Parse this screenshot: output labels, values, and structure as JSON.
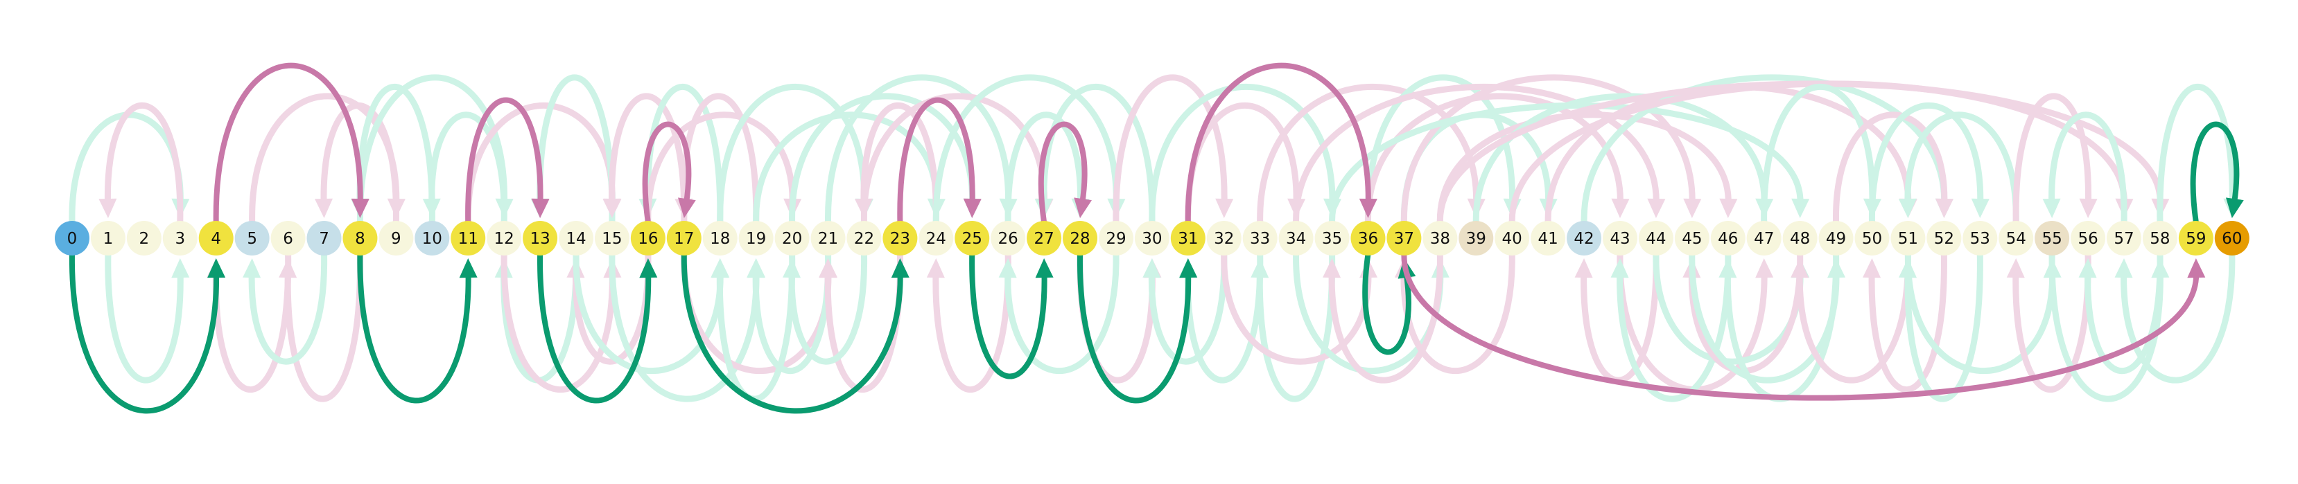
{
  "diagram": {
    "nodes": [
      {
        "label": "0",
        "kind": "start"
      },
      {
        "label": "1",
        "kind": "plain"
      },
      {
        "label": "2",
        "kind": "plain"
      },
      {
        "label": "3",
        "kind": "plain"
      },
      {
        "label": "4",
        "kind": "path"
      },
      {
        "label": "5",
        "kind": "faded-blue"
      },
      {
        "label": "6",
        "kind": "plain"
      },
      {
        "label": "7",
        "kind": "faded-blue"
      },
      {
        "label": "8",
        "kind": "path"
      },
      {
        "label": "9",
        "kind": "plain"
      },
      {
        "label": "10",
        "kind": "faded-blue"
      },
      {
        "label": "11",
        "kind": "path"
      },
      {
        "label": "12",
        "kind": "plain"
      },
      {
        "label": "13",
        "kind": "path"
      },
      {
        "label": "14",
        "kind": "plain"
      },
      {
        "label": "15",
        "kind": "plain"
      },
      {
        "label": "16",
        "kind": "path"
      },
      {
        "label": "17",
        "kind": "path"
      },
      {
        "label": "18",
        "kind": "plain"
      },
      {
        "label": "19",
        "kind": "plain"
      },
      {
        "label": "20",
        "kind": "plain"
      },
      {
        "label": "21",
        "kind": "plain"
      },
      {
        "label": "22",
        "kind": "plain"
      },
      {
        "label": "23",
        "kind": "path"
      },
      {
        "label": "24",
        "kind": "plain"
      },
      {
        "label": "25",
        "kind": "path"
      },
      {
        "label": "26",
        "kind": "plain"
      },
      {
        "label": "27",
        "kind": "path"
      },
      {
        "label": "28",
        "kind": "path"
      },
      {
        "label": "29",
        "kind": "plain"
      },
      {
        "label": "30",
        "kind": "plain"
      },
      {
        "label": "31",
        "kind": "path"
      },
      {
        "label": "32",
        "kind": "plain"
      },
      {
        "label": "33",
        "kind": "plain"
      },
      {
        "label": "34",
        "kind": "plain"
      },
      {
        "label": "35",
        "kind": "plain"
      },
      {
        "label": "36",
        "kind": "path"
      },
      {
        "label": "37",
        "kind": "path"
      },
      {
        "label": "38",
        "kind": "plain"
      },
      {
        "label": "39",
        "kind": "faded-tan"
      },
      {
        "label": "40",
        "kind": "plain"
      },
      {
        "label": "41",
        "kind": "plain"
      },
      {
        "label": "42",
        "kind": "faded-blue"
      },
      {
        "label": "43",
        "kind": "plain"
      },
      {
        "label": "44",
        "kind": "plain"
      },
      {
        "label": "45",
        "kind": "plain"
      },
      {
        "label": "46",
        "kind": "plain"
      },
      {
        "label": "47",
        "kind": "plain"
      },
      {
        "label": "48",
        "kind": "plain"
      },
      {
        "label": "49",
        "kind": "plain"
      },
      {
        "label": "50",
        "kind": "plain"
      },
      {
        "label": "51",
        "kind": "plain"
      },
      {
        "label": "52",
        "kind": "plain"
      },
      {
        "label": "53",
        "kind": "plain"
      },
      {
        "label": "54",
        "kind": "plain"
      },
      {
        "label": "55",
        "kind": "faded-tan"
      },
      {
        "label": "56",
        "kind": "plain"
      },
      {
        "label": "57",
        "kind": "plain"
      },
      {
        "label": "58",
        "kind": "plain"
      },
      {
        "label": "59",
        "kind": "path"
      },
      {
        "label": "60",
        "kind": "goal"
      }
    ],
    "path_edges": [
      {
        "from": 0,
        "to": 4,
        "kind": "green",
        "side": "below"
      },
      {
        "from": 4,
        "to": 8,
        "kind": "pink",
        "side": "above"
      },
      {
        "from": 8,
        "to": 11,
        "kind": "green",
        "side": "below"
      },
      {
        "from": 11,
        "to": 13,
        "kind": "pink",
        "side": "above"
      },
      {
        "from": 13,
        "to": 16,
        "kind": "green",
        "side": "below"
      },
      {
        "from": 16,
        "to": 17,
        "kind": "pink",
        "side": "above"
      },
      {
        "from": 17,
        "to": 23,
        "kind": "green",
        "side": "below"
      },
      {
        "from": 23,
        "to": 25,
        "kind": "pink",
        "side": "above"
      },
      {
        "from": 25,
        "to": 27,
        "kind": "green",
        "side": "below"
      },
      {
        "from": 27,
        "to": 28,
        "kind": "pink",
        "side": "above"
      },
      {
        "from": 28,
        "to": 31,
        "kind": "green",
        "side": "below"
      },
      {
        "from": 31,
        "to": 36,
        "kind": "pink",
        "side": "above"
      },
      {
        "from": 36,
        "to": 37,
        "kind": "green",
        "side": "below"
      },
      {
        "from": 37,
        "to": 59,
        "kind": "pink",
        "side": "below"
      },
      {
        "from": 59,
        "to": 60,
        "kind": "green",
        "side": "above"
      }
    ],
    "faint_edges": [
      {
        "from": 0,
        "to": 3,
        "kind": "green",
        "side": "above"
      },
      {
        "from": 3,
        "to": 1,
        "kind": "pink",
        "side": "above"
      },
      {
        "from": 1,
        "to": 3,
        "kind": "green",
        "side": "below"
      },
      {
        "from": 6,
        "to": 4,
        "kind": "pink",
        "side": "below"
      },
      {
        "from": 8,
        "to": 6,
        "kind": "pink",
        "side": "below"
      },
      {
        "from": 7,
        "to": 5,
        "kind": "green",
        "side": "below"
      },
      {
        "from": 9,
        "to": 7,
        "kind": "pink",
        "side": "above"
      },
      {
        "from": 5,
        "to": 9,
        "kind": "pink",
        "side": "above"
      },
      {
        "from": 10,
        "to": 8,
        "kind": "green",
        "side": "above"
      },
      {
        "from": 8,
        "to": 12,
        "kind": "green",
        "side": "above"
      },
      {
        "from": 12,
        "to": 10,
        "kind": "green",
        "side": "above"
      },
      {
        "from": 11,
        "to": 15,
        "kind": "pink",
        "side": "above"
      },
      {
        "from": 14,
        "to": 12,
        "kind": "green",
        "side": "below"
      },
      {
        "from": 12,
        "to": 15,
        "kind": "pink",
        "side": "below"
      },
      {
        "from": 15,
        "to": 13,
        "kind": "green",
        "side": "above"
      },
      {
        "from": 16,
        "to": 14,
        "kind": "pink",
        "side": "below"
      },
      {
        "from": 14,
        "to": 18,
        "kind": "green",
        "side": "below"
      },
      {
        "from": 17,
        "to": 15,
        "kind": "pink",
        "side": "above"
      },
      {
        "from": 18,
        "to": 16,
        "kind": "green",
        "side": "above"
      },
      {
        "from": 15,
        "to": 19,
        "kind": "green",
        "side": "below"
      },
      {
        "from": 16,
        "to": 20,
        "kind": "pink",
        "side": "above"
      },
      {
        "from": 17,
        "to": 21,
        "kind": "pink",
        "side": "below"
      },
      {
        "from": 19,
        "to": 17,
        "kind": "pink",
        "side": "above"
      },
      {
        "from": 18,
        "to": 22,
        "kind": "green",
        "side": "above"
      },
      {
        "from": 20,
        "to": 18,
        "kind": "green",
        "side": "below"
      },
      {
        "from": 19,
        "to": 24,
        "kind": "green",
        "side": "above"
      },
      {
        "from": 21,
        "to": 19,
        "kind": "green",
        "side": "below"
      },
      {
        "from": 20,
        "to": 25,
        "kind": "green",
        "side": "above"
      },
      {
        "from": 23,
        "to": 21,
        "kind": "pink",
        "side": "below"
      },
      {
        "from": 21,
        "to": 26,
        "kind": "green",
        "side": "above"
      },
      {
        "from": 22,
        "to": 20,
        "kind": "green",
        "side": "below"
      },
      {
        "from": 24,
        "to": 22,
        "kind": "pink",
        "side": "above"
      },
      {
        "from": 22,
        "to": 27,
        "kind": "pink",
        "side": "above"
      },
      {
        "from": 26,
        "to": 24,
        "kind": "pink",
        "side": "below"
      },
      {
        "from": 24,
        "to": 29,
        "kind": "green",
        "side": "above"
      },
      {
        "from": 26,
        "to": 28,
        "kind": "green",
        "side": "above"
      },
      {
        "from": 29,
        "to": 26,
        "kind": "green",
        "side": "below"
      },
      {
        "from": 28,
        "to": 30,
        "kind": "pink",
        "side": "below"
      },
      {
        "from": 30,
        "to": 27,
        "kind": "green",
        "side": "above"
      },
      {
        "from": 29,
        "to": 32,
        "kind": "pink",
        "side": "above"
      },
      {
        "from": 32,
        "to": 30,
        "kind": "green",
        "side": "below"
      },
      {
        "from": 31,
        "to": 34,
        "kind": "pink",
        "side": "above"
      },
      {
        "from": 33,
        "to": 31,
        "kind": "green",
        "side": "below"
      },
      {
        "from": 30,
        "to": 35,
        "kind": "green",
        "side": "above"
      },
      {
        "from": 35,
        "to": 33,
        "kind": "green",
        "side": "below"
      },
      {
        "from": 32,
        "to": 36,
        "kind": "pink",
        "side": "below"
      },
      {
        "from": 34,
        "to": 38,
        "kind": "green",
        "side": "below"
      },
      {
        "from": 38,
        "to": 35,
        "kind": "pink",
        "side": "below"
      },
      {
        "from": 33,
        "to": 39,
        "kind": "pink",
        "side": "above"
      },
      {
        "from": 36,
        "to": 40,
        "kind": "green",
        "side": "above"
      },
      {
        "from": 37,
        "to": 41,
        "kind": "green",
        "side": "above"
      },
      {
        "from": 40,
        "to": 37,
        "kind": "pink",
        "side": "below"
      },
      {
        "from": 36,
        "to": 43,
        "kind": "pink",
        "side": "above"
      },
      {
        "from": 34,
        "to": 44,
        "kind": "pink",
        "side": "above"
      },
      {
        "from": 37,
        "to": 45,
        "kind": "pink",
        "side": "above"
      },
      {
        "from": 38,
        "to": 46,
        "kind": "pink",
        "side": "above"
      },
      {
        "from": 35,
        "to": 48,
        "kind": "green",
        "side": "above"
      },
      {
        "from": 39,
        "to": 47,
        "kind": "green",
        "side": "above"
      },
      {
        "from": 41,
        "to": 51,
        "kind": "pink",
        "side": "above"
      },
      {
        "from": 42,
        "to": 52,
        "kind": "green",
        "side": "above"
      },
      {
        "from": 40,
        "to": 57,
        "kind": "pink",
        "side": "above"
      },
      {
        "from": 38,
        "to": 58,
        "kind": "pink",
        "side": "above"
      },
      {
        "from": 44,
        "to": 42,
        "kind": "pink",
        "side": "below"
      },
      {
        "from": 43,
        "to": 47,
        "kind": "pink",
        "side": "below"
      },
      {
        "from": 46,
        "to": 43,
        "kind": "green",
        "side": "below"
      },
      {
        "from": 44,
        "to": 48,
        "kind": "green",
        "side": "below"
      },
      {
        "from": 48,
        "to": 45,
        "kind": "pink",
        "side": "below"
      },
      {
        "from": 45,
        "to": 49,
        "kind": "green",
        "side": "below"
      },
      {
        "from": 47,
        "to": 50,
        "kind": "green",
        "side": "above"
      },
      {
        "from": 49,
        "to": 46,
        "kind": "green",
        "side": "below"
      },
      {
        "from": 49,
        "to": 52,
        "kind": "pink",
        "side": "above"
      },
      {
        "from": 50,
        "to": 53,
        "kind": "green",
        "side": "above"
      },
      {
        "from": 51,
        "to": 48,
        "kind": "pink",
        "side": "below"
      },
      {
        "from": 52,
        "to": 50,
        "kind": "pink",
        "side": "below"
      },
      {
        "from": 53,
        "to": 51,
        "kind": "green",
        "side": "below"
      },
      {
        "from": 54,
        "to": 51,
        "kind": "green",
        "side": "above"
      },
      {
        "from": 51,
        "to": 55,
        "kind": "green",
        "side": "below"
      },
      {
        "from": 54,
        "to": 56,
        "kind": "pink",
        "side": "above"
      },
      {
        "from": 56,
        "to": 54,
        "kind": "pink",
        "side": "below"
      },
      {
        "from": 55,
        "to": 58,
        "kind": "green",
        "side": "below"
      },
      {
        "from": 57,
        "to": 55,
        "kind": "green",
        "side": "above"
      },
      {
        "from": 58,
        "to": 56,
        "kind": "green",
        "side": "below"
      },
      {
        "from": 60,
        "to": 57,
        "kind": "green",
        "side": "below"
      },
      {
        "from": 58,
        "to": 60,
        "kind": "green",
        "side": "above"
      }
    ],
    "colors": {
      "green_strong": "#0a9b6f",
      "pink_strong": "#c878a8",
      "green_faint": "#cdf3e6",
      "pink_faint": "#f0d6e4",
      "start": "#5aaee0",
      "goal": "#e69c00",
      "path": "#f0e23e",
      "plain": "#f7f6dd",
      "faded_blue": "#c6dfe9",
      "faded_tan": "#ebe0c6",
      "label": "#111111"
    }
  }
}
